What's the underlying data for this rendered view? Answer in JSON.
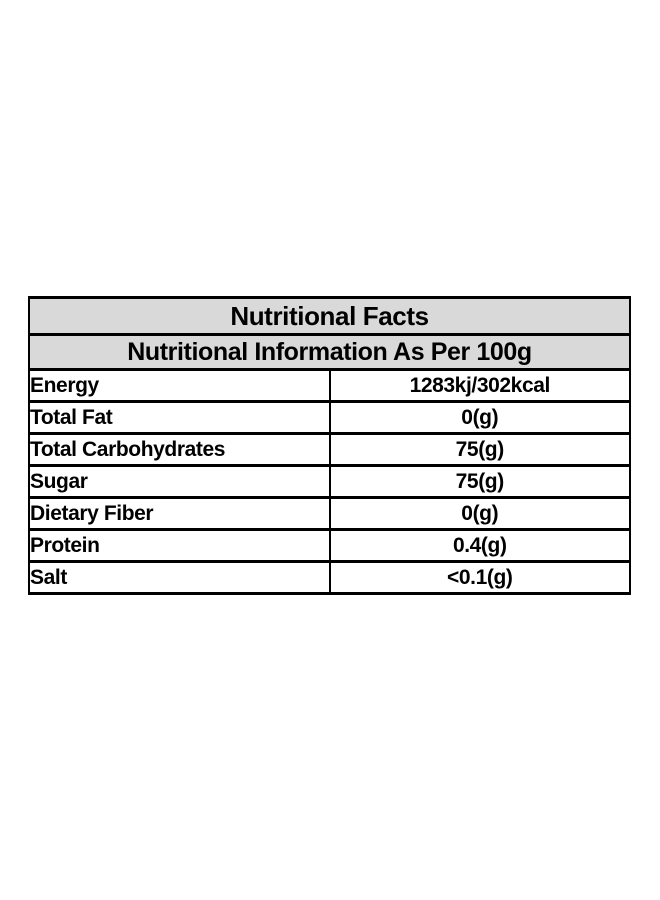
{
  "table": {
    "title": "Nutritional Facts",
    "subtitle": "Nutritional Information As Per 100g",
    "rows": [
      {
        "label": "Energy",
        "value": "1283kj/302kcal"
      },
      {
        "label": "Total Fat",
        "value": "0(g)"
      },
      {
        "label": "Total Carbohydrates",
        "value": "75(g)"
      },
      {
        "label": "Sugar",
        "value": "75(g)"
      },
      {
        "label": "Dietary Fiber",
        "value": "0(g)"
      },
      {
        "label": "Protein",
        "value": "0.4(g)"
      },
      {
        "label": "Salt",
        "value": "<0.1(g)"
      }
    ],
    "colors": {
      "header_bg": "#d9d9d9",
      "border": "#000000",
      "text": "#000000",
      "background": "#ffffff"
    }
  }
}
